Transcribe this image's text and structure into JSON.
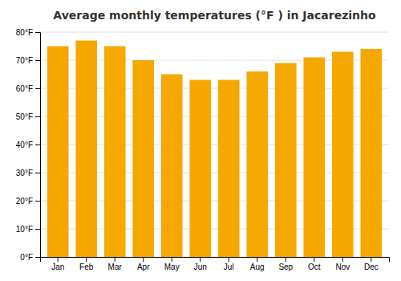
{
  "chart_data": {
    "type": "bar",
    "title": "Average monthly temperatures (°F ) in Jacarezinho",
    "categories": [
      "Jan",
      "Feb",
      "Mar",
      "Apr",
      "May",
      "Jun",
      "Jul",
      "Aug",
      "Sep",
      "Oct",
      "Nov",
      "Dec"
    ],
    "values": [
      75,
      77,
      75,
      70,
      65,
      63,
      63,
      66,
      69,
      71,
      73,
      74
    ],
    "color": "#F5A800",
    "ylim": [
      0,
      80
    ],
    "yticks": [
      {
        "value": 0,
        "label": "0°F"
      },
      {
        "value": 10,
        "label": "10°F"
      },
      {
        "value": 20,
        "label": "20°F"
      },
      {
        "value": 30,
        "label": "30°F"
      },
      {
        "value": 40,
        "label": "40°F"
      },
      {
        "value": 50,
        "label": "50°F"
      },
      {
        "value": 60,
        "label": "60°F"
      },
      {
        "value": 70,
        "label": "70°F"
      },
      {
        "value": 80,
        "label": "80°F"
      }
    ],
    "grid": true
  }
}
